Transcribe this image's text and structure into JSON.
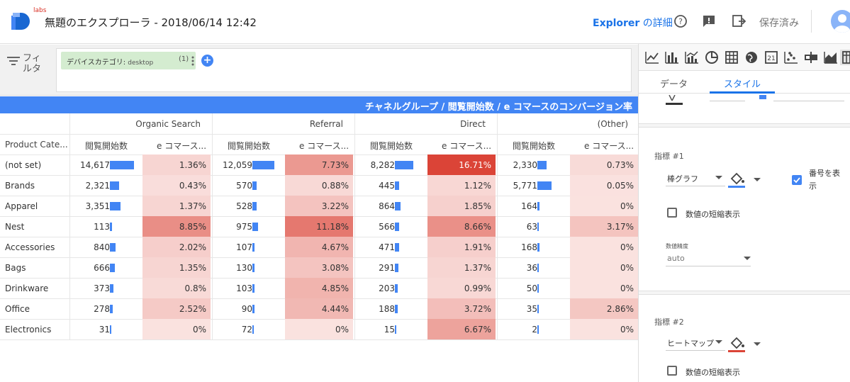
{
  "header": {
    "labs": "labs",
    "title": "無題のエクスプローラ - 2018/06/14 12:42",
    "explorer_bold": "Explorer",
    "explorer_rest": " の詳細",
    "saved": "保存済み"
  },
  "filter": {
    "label": "フィルタ",
    "chip_label": "デバイスカテゴリ:",
    "chip_value": "desktop",
    "chip_count": "(1)",
    "add": "+"
  },
  "table": {
    "title_bar": "チャネルグループ / 閲覧開始数 / e コマースのコンバージョン率",
    "row_header": "Product Cate...",
    "groups": [
      "Organic Search",
      "Referral",
      "Direct",
      "(Other)"
    ],
    "metric1_header": "閲覧開始数",
    "metric2_header": "e コマース...",
    "rows": [
      {
        "label": "(not set)",
        "cells": [
          {
            "n": "14,617",
            "p": "1.36%"
          },
          {
            "n": "12,059",
            "p": "7.73%"
          },
          {
            "n": "8,282",
            "p": "16.71%"
          },
          {
            "n": "2,330",
            "p": "0.73%"
          }
        ]
      },
      {
        "label": "Brands",
        "cells": [
          {
            "n": "2,321",
            "p": "0.43%"
          },
          {
            "n": "570",
            "p": "0.88%"
          },
          {
            "n": "445",
            "p": "1.12%"
          },
          {
            "n": "5,771",
            "p": "0.05%"
          }
        ]
      },
      {
        "label": "Apparel",
        "cells": [
          {
            "n": "3,351",
            "p": "1.37%"
          },
          {
            "n": "528",
            "p": "3.22%"
          },
          {
            "n": "864",
            "p": "1.85%"
          },
          {
            "n": "164",
            "p": "0%"
          }
        ]
      },
      {
        "label": "Nest",
        "cells": [
          {
            "n": "113",
            "p": "8.85%"
          },
          {
            "n": "975",
            "p": "11.18%"
          },
          {
            "n": "566",
            "p": "8.66%"
          },
          {
            "n": "63",
            "p": "3.17%"
          }
        ]
      },
      {
        "label": "Accessories",
        "cells": [
          {
            "n": "840",
            "p": "2.02%"
          },
          {
            "n": "107",
            "p": "4.67%"
          },
          {
            "n": "471",
            "p": "1.91%"
          },
          {
            "n": "168",
            "p": "0%"
          }
        ]
      },
      {
        "label": "Bags",
        "cells": [
          {
            "n": "666",
            "p": "1.35%"
          },
          {
            "n": "130",
            "p": "3.08%"
          },
          {
            "n": "291",
            "p": "1.37%"
          },
          {
            "n": "36",
            "p": "0%"
          }
        ]
      },
      {
        "label": "Drinkware",
        "cells": [
          {
            "n": "373",
            "p": "0.8%"
          },
          {
            "n": "103",
            "p": "4.85%"
          },
          {
            "n": "203",
            "p": "0.99%"
          },
          {
            "n": "50",
            "p": "0%"
          }
        ]
      },
      {
        "label": "Office",
        "cells": [
          {
            "n": "278",
            "p": "2.52%"
          },
          {
            "n": "90",
            "p": "4.44%"
          },
          {
            "n": "188",
            "p": "3.72%"
          },
          {
            "n": "35",
            "p": "2.86%"
          }
        ]
      },
      {
        "label": "Electronics",
        "cells": [
          {
            "n": "31",
            "p": "0%"
          },
          {
            "n": "72",
            "p": "0%"
          },
          {
            "n": "15",
            "p": "6.67%"
          },
          {
            "n": "2",
            "p": "0%"
          }
        ]
      }
    ]
  },
  "panel": {
    "tab_data": "データ",
    "tab_style": "スタイル",
    "metric1_label": "指標 #1",
    "metric1_type": "棒グラフ",
    "show_number_label": "番号を表示",
    "compact_numbers1": "数値の短縮表示",
    "precision_label": "数値精度",
    "precision_value": "auto",
    "metric2_label": "指標 #2",
    "metric2_type": "ヒートマップ",
    "compact_numbers2": "数値の短縮表示"
  },
  "colors": {
    "accent": "#4285f4",
    "bar": "#4285f4",
    "heat_max": "#db4437",
    "fill1": "#4285f4",
    "fill2": "#db4437"
  }
}
